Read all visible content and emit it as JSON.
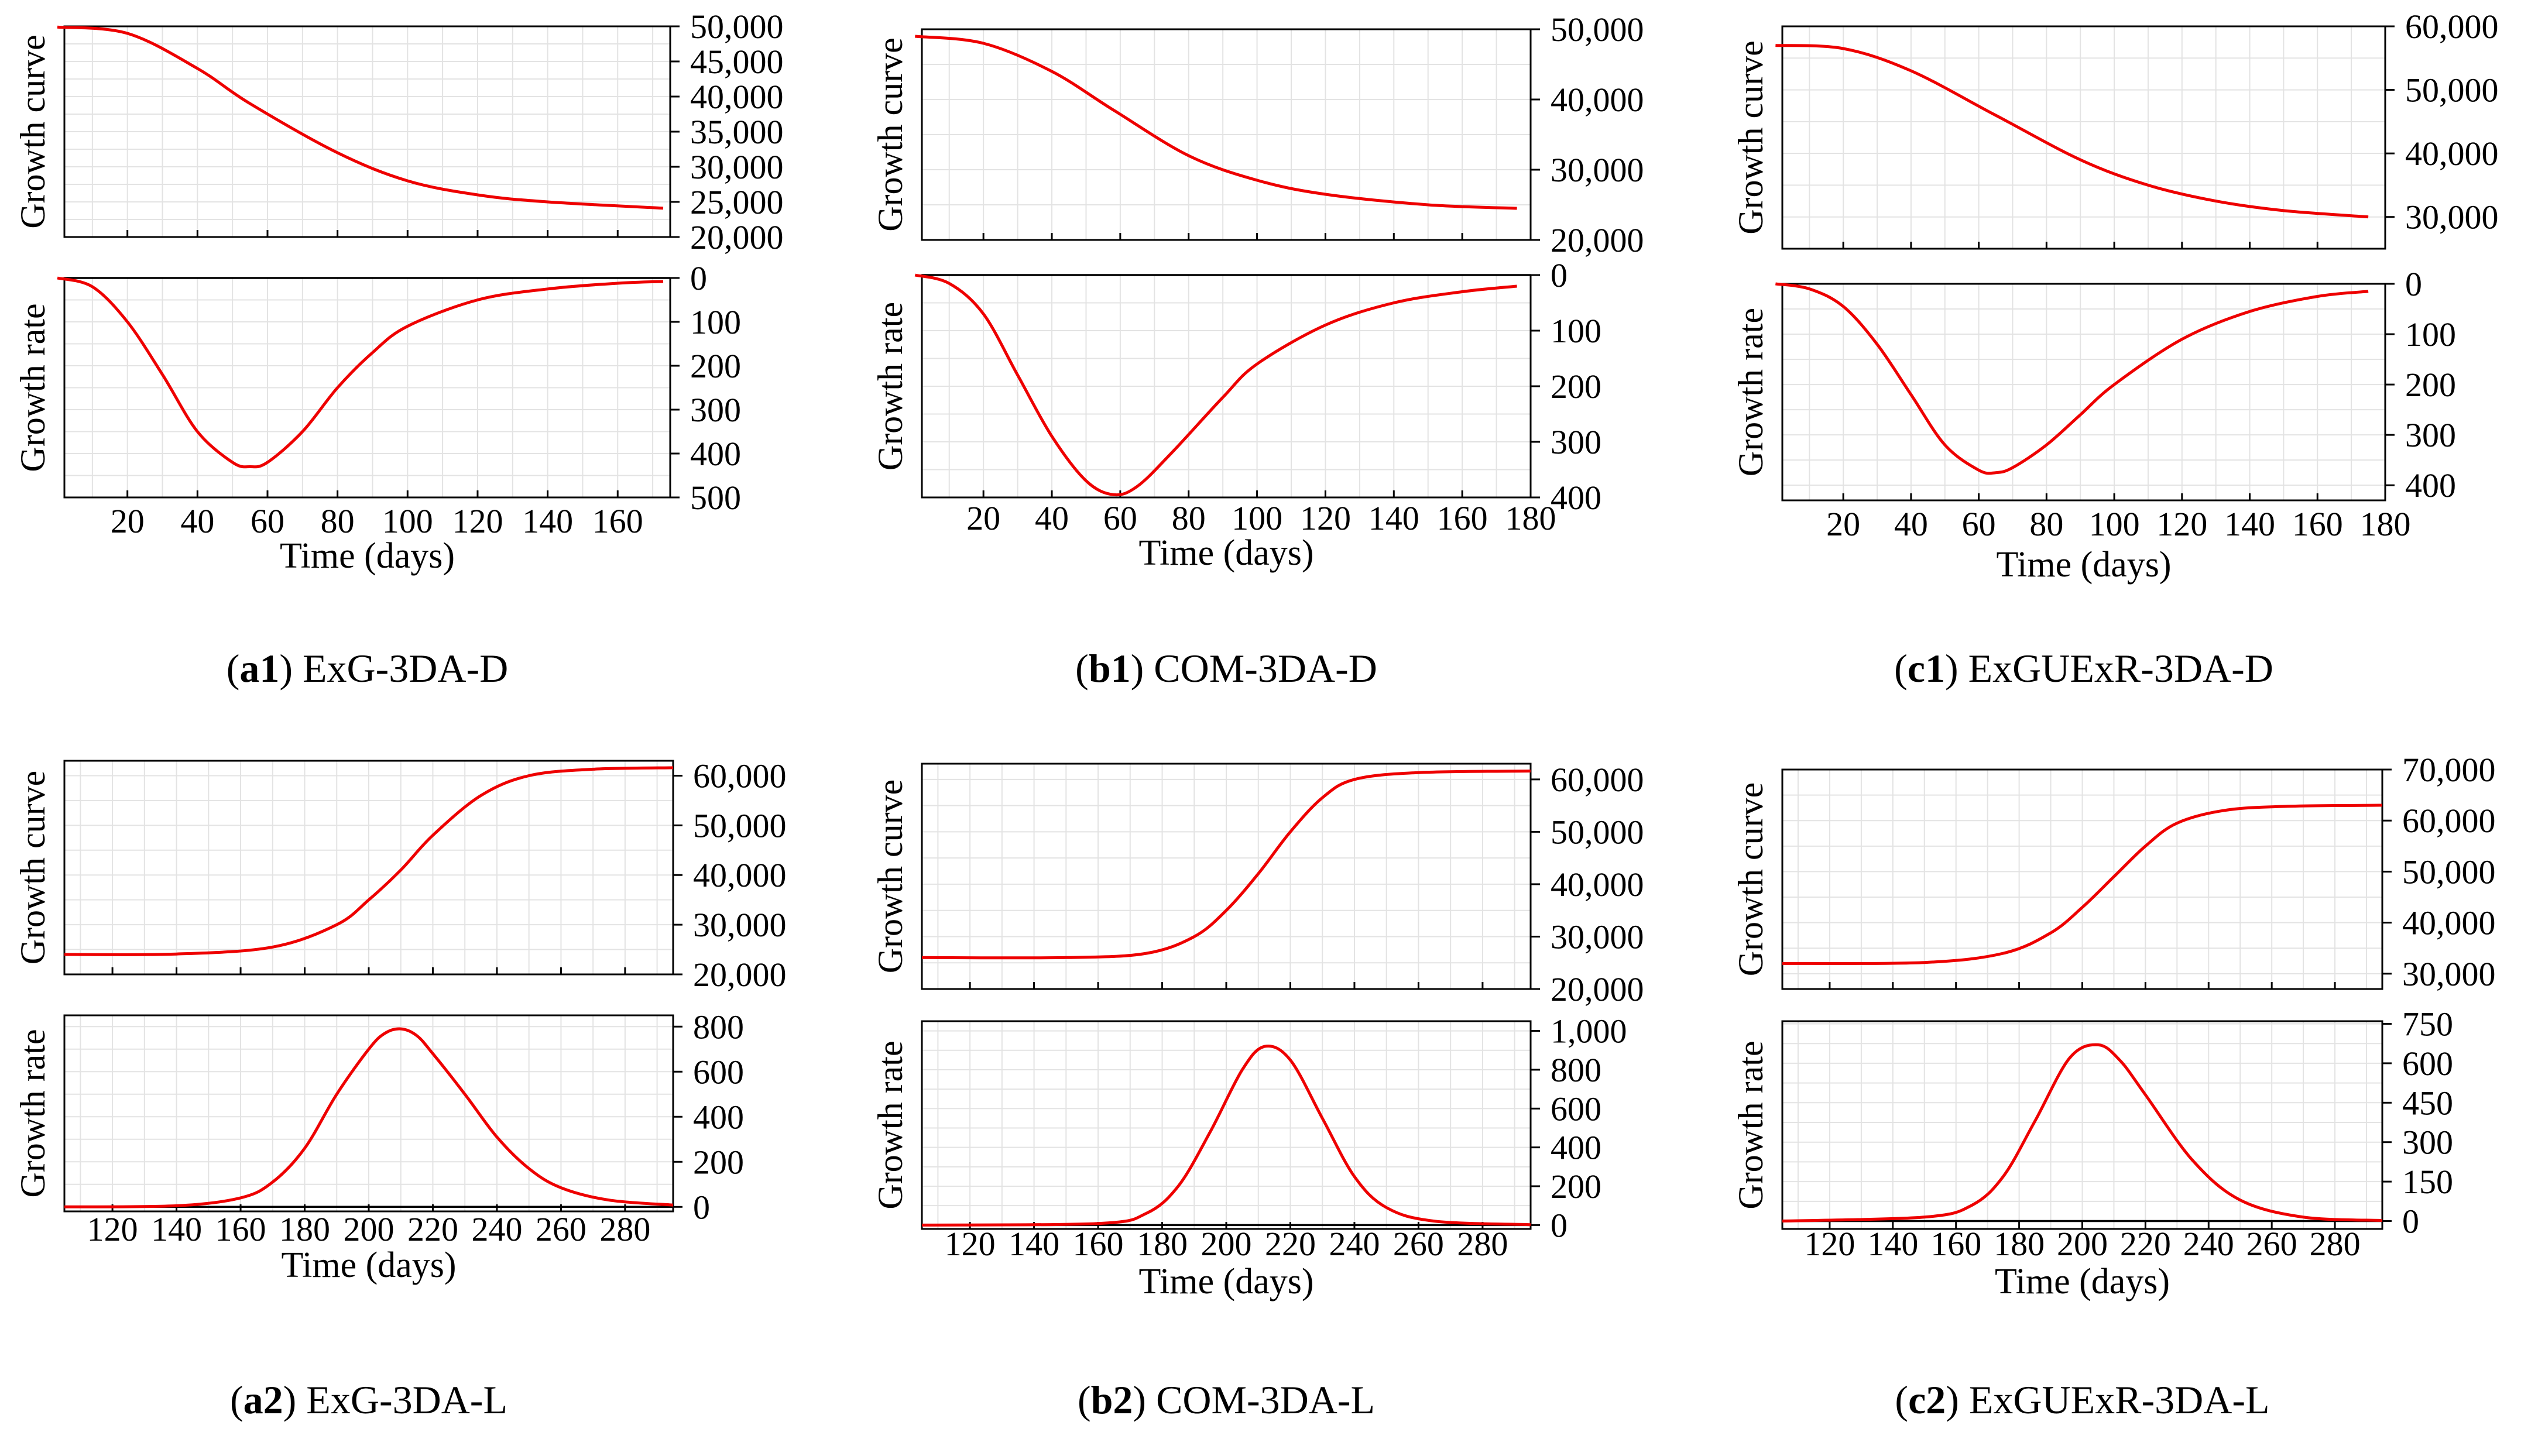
{
  "chart_data": [
    {
      "panel_label": "a1",
      "name": "ExG-3DA-D",
      "xlabel": "Time (days)",
      "x_ticks": [
        20,
        40,
        60,
        80,
        100,
        120,
        140,
        160
      ],
      "top": {
        "ylabel": "Growth curve",
        "type": "line",
        "yrange": [
          20000,
          50000
        ],
        "y_ticks": [
          20000,
          25000,
          30000,
          35000,
          40000,
          45000,
          50000
        ],
        "y_tick_labels": [
          "20,000",
          "25,000",
          "30,000",
          "35,000",
          "40,000",
          "45,000",
          "50,000"
        ],
        "x": [
          0,
          20,
          40,
          55,
          80,
          100,
          120,
          140,
          173
        ],
        "y": [
          49900,
          49000,
          44000,
          39000,
          32000,
          28000,
          26000,
          25000,
          24100
        ]
      },
      "bottom": {
        "ylabel": "Growth rate",
        "type": "line",
        "inverted": true,
        "zero_line": true,
        "yrange": [
          0,
          500
        ],
        "y_ticks": [
          0,
          100,
          200,
          300,
          400,
          500
        ],
        "y_tick_labels": [
          "0",
          "100",
          "200",
          "300",
          "400",
          "500"
        ],
        "x": [
          0,
          10,
          20,
          30,
          40,
          50,
          55,
          60,
          70,
          80,
          90,
          100,
          120,
          140,
          160,
          173
        ],
        "y": [
          0,
          20,
          100,
          220,
          350,
          420,
          430,
          420,
          350,
          250,
          170,
          110,
          50,
          25,
          12,
          8
        ]
      }
    },
    {
      "panel_label": "b1",
      "name": "COM-3DA-D",
      "xlabel": "Time (days)",
      "x_ticks": [
        20,
        40,
        60,
        80,
        100,
        120,
        140,
        160,
        180
      ],
      "top": {
        "ylabel": "Growth curve",
        "type": "line",
        "yrange": [
          20000,
          50000
        ],
        "y_ticks": [
          20000,
          30000,
          40000,
          50000
        ],
        "y_tick_labels": [
          "20,000",
          "30,000",
          "40,000",
          "50,000"
        ],
        "x": [
          0,
          20,
          40,
          58,
          80,
          100,
          120,
          150,
          176
        ],
        "y": [
          49000,
          48000,
          44000,
          38500,
          32000,
          28500,
          26500,
          25000,
          24500
        ]
      },
      "bottom": {
        "ylabel": "Growth rate",
        "type": "line",
        "inverted": true,
        "zero_line": true,
        "yrange": [
          0,
          400
        ],
        "y_ticks": [
          0,
          100,
          200,
          300,
          400
        ],
        "y_tick_labels": [
          "0",
          "100",
          "200",
          "300",
          "400"
        ],
        "x": [
          0,
          10,
          20,
          30,
          40,
          50,
          58,
          65,
          75,
          90,
          100,
          120,
          140,
          160,
          176
        ],
        "y": [
          0,
          15,
          70,
          180,
          290,
          370,
          395,
          380,
          320,
          220,
          160,
          90,
          50,
          30,
          20
        ]
      }
    },
    {
      "panel_label": "c1",
      "name": "ExGUExR-3DA-D",
      "xlabel": "Time (days)",
      "x_ticks": [
        20,
        40,
        60,
        80,
        100,
        120,
        140,
        160,
        180
      ],
      "top": {
        "ylabel": "Growth curve",
        "type": "line",
        "yrange": [
          25000,
          60000
        ],
        "y_ticks": [
          30000,
          40000,
          50000,
          60000
        ],
        "y_tick_labels": [
          "30,000",
          "40,000",
          "50,000",
          "60,000"
        ],
        "x": [
          0,
          20,
          40,
          65,
          90,
          110,
          130,
          150,
          175
        ],
        "y": [
          57000,
          56500,
          53000,
          46000,
          39000,
          35000,
          32500,
          31000,
          30000
        ]
      },
      "bottom": {
        "ylabel": "Growth rate",
        "type": "line",
        "inverted": true,
        "zero_line": false,
        "yrange": [
          0,
          430
        ],
        "y_ticks": [
          0,
          100,
          200,
          300,
          400
        ],
        "y_tick_labels": [
          "0",
          "100",
          "200",
          "300",
          "400"
        ],
        "x": [
          0,
          10,
          20,
          30,
          40,
          50,
          60,
          65,
          70,
          80,
          90,
          100,
          120,
          140,
          160,
          175
        ],
        "y": [
          0,
          10,
          45,
          120,
          220,
          320,
          370,
          375,
          365,
          320,
          260,
          200,
          110,
          55,
          25,
          15
        ]
      }
    },
    {
      "panel_label": "a2",
      "name": "ExG-3DA-L",
      "xlabel": "Time (days)",
      "x_ticks": [
        120,
        140,
        160,
        180,
        200,
        220,
        240,
        260,
        280
      ],
      "top": {
        "ylabel": "Growth curve",
        "type": "line",
        "yrange": [
          20000,
          63000
        ],
        "y_ticks": [
          20000,
          30000,
          40000,
          50000,
          60000
        ],
        "y_tick_labels": [
          "20,000",
          "30,000",
          "40,000",
          "50,000",
          "60,000"
        ],
        "x": [
          105,
          140,
          170,
          190,
          200,
          210,
          220,
          235,
          250,
          270,
          295
        ],
        "y": [
          24000,
          24100,
          25500,
          30000,
          35000,
          41000,
          48000,
          56000,
          60000,
          61300,
          61600
        ]
      },
      "bottom": {
        "ylabel": "Growth rate",
        "type": "line",
        "inverted": false,
        "zero_line": true,
        "yrange": [
          -20,
          850
        ],
        "y_ticks": [
          0,
          200,
          400,
          600,
          800
        ],
        "y_tick_labels": [
          "0",
          "200",
          "400",
          "600",
          "800"
        ],
        "x": [
          105,
          140,
          160,
          170,
          180,
          190,
          200,
          205,
          210,
          215,
          220,
          230,
          240,
          250,
          260,
          275,
          295
        ],
        "y": [
          0,
          5,
          40,
          110,
          260,
          500,
          700,
          770,
          790,
          760,
          680,
          500,
          310,
          170,
          85,
          30,
          8
        ]
      }
    },
    {
      "panel_label": "b2",
      "name": "COM-3DA-L",
      "xlabel": "Time (days)",
      "x_ticks": [
        120,
        140,
        160,
        180,
        200,
        220,
        240,
        260,
        280
      ],
      "top": {
        "ylabel": "Growth curve",
        "type": "line",
        "yrange": [
          20000,
          63000
        ],
        "y_ticks": [
          20000,
          30000,
          40000,
          50000,
          60000
        ],
        "y_tick_labels": [
          "20,000",
          "30,000",
          "40,000",
          "50,000",
          "60,000"
        ],
        "x": [
          105,
          150,
          175,
          190,
          200,
          210,
          220,
          230,
          240,
          260,
          295
        ],
        "y": [
          26000,
          26000,
          26800,
          30000,
          35000,
          42000,
          50000,
          56500,
          60000,
          61300,
          61600
        ]
      },
      "bottom": {
        "ylabel": "Growth rate",
        "type": "line",
        "inverted": false,
        "zero_line": true,
        "yrange": [
          -20,
          1050
        ],
        "y_ticks": [
          0,
          200,
          400,
          600,
          800,
          1000
        ],
        "y_tick_labels": [
          "0",
          "200",
          "400",
          "600",
          "800",
          "1,000"
        ],
        "x": [
          105,
          160,
          175,
          185,
          195,
          205,
          212,
          220,
          230,
          240,
          250,
          265,
          295
        ],
        "y": [
          0,
          8,
          60,
          200,
          480,
          800,
          920,
          850,
          550,
          250,
          90,
          20,
          2
        ]
      }
    },
    {
      "panel_label": "c2",
      "name": "ExGUExR-3DA-L",
      "xlabel": "Time (days)",
      "x_ticks": [
        120,
        140,
        160,
        180,
        200,
        220,
        240,
        260,
        280
      ],
      "top": {
        "ylabel": "Growth curve",
        "type": "line",
        "yrange": [
          27000,
          70000
        ],
        "y_ticks": [
          30000,
          40000,
          50000,
          60000,
          70000
        ],
        "y_tick_labels": [
          "30,000",
          "40,000",
          "50,000",
          "60,000",
          "70,000"
        ],
        "x": [
          105,
          150,
          175,
          190,
          200,
          210,
          220,
          230,
          245,
          265,
          295
        ],
        "y": [
          32000,
          32200,
          34000,
          38000,
          43000,
          49000,
          55000,
          59500,
          62000,
          62800,
          63000
        ]
      },
      "bottom": {
        "ylabel": "Growth rate",
        "type": "line",
        "inverted": false,
        "zero_line": true,
        "yrange": [
          -30,
          760
        ],
        "y_ticks": [
          0,
          150,
          300,
          450,
          600,
          750
        ],
        "y_tick_labels": [
          "0",
          "150",
          "300",
          "450",
          "600",
          "750"
        ],
        "x": [
          105,
          150,
          165,
          175,
          185,
          196,
          205,
          212,
          220,
          235,
          250,
          270,
          295
        ],
        "y": [
          0,
          15,
          60,
          170,
          380,
          620,
          670,
          610,
          480,
          230,
          80,
          15,
          2
        ]
      }
    }
  ]
}
